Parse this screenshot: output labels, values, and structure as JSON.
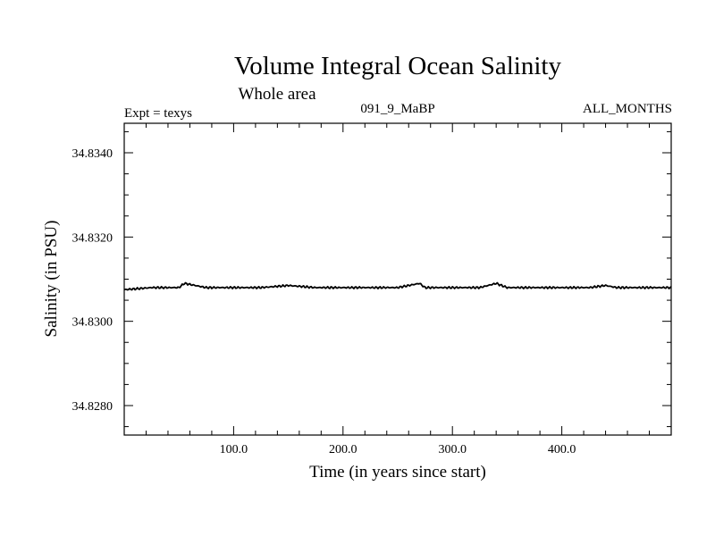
{
  "chart_data": {
    "type": "line",
    "title": "Volume Integral Ocean Salinity",
    "subtitle": "Whole area",
    "left_label": "Expt = texys",
    "center_label": "091_9_MaBP",
    "right_label": "ALL_MONTHS",
    "xlabel": "Time (in years since start)",
    "ylabel": "Salinity (in PSU)",
    "xlim": [
      0,
      500
    ],
    "ylim": [
      34.8273,
      34.8347
    ],
    "x_ticks": [
      100,
      200,
      300,
      400
    ],
    "x_tick_labels": [
      "100.0",
      "200.0",
      "300.0",
      "400.0"
    ],
    "y_ticks": [
      34.828,
      34.83,
      34.832,
      34.834
    ],
    "y_tick_labels": [
      "34.8280",
      "34.8300",
      "34.8320",
      "34.8340"
    ],
    "grid": false,
    "series": [
      {
        "x": [
          0,
          25,
          50,
          55,
          75,
          100,
          125,
          150,
          175,
          200,
          225,
          250,
          270,
          275,
          300,
          325,
          340,
          350,
          375,
          400,
          425,
          440,
          450,
          475,
          500
        ],
        "values": [
          34.83075,
          34.8308,
          34.8308,
          34.8309,
          34.8308,
          34.8308,
          34.8308,
          34.83085,
          34.8308,
          34.8308,
          34.8308,
          34.8308,
          34.8309,
          34.8308,
          34.8308,
          34.8308,
          34.8309,
          34.8308,
          34.8308,
          34.8308,
          34.8308,
          34.83085,
          34.8308,
          34.8308,
          34.8308
        ]
      }
    ],
    "colors": {
      "line": "#000000",
      "axes": "#000000",
      "background": "#ffffff"
    }
  }
}
